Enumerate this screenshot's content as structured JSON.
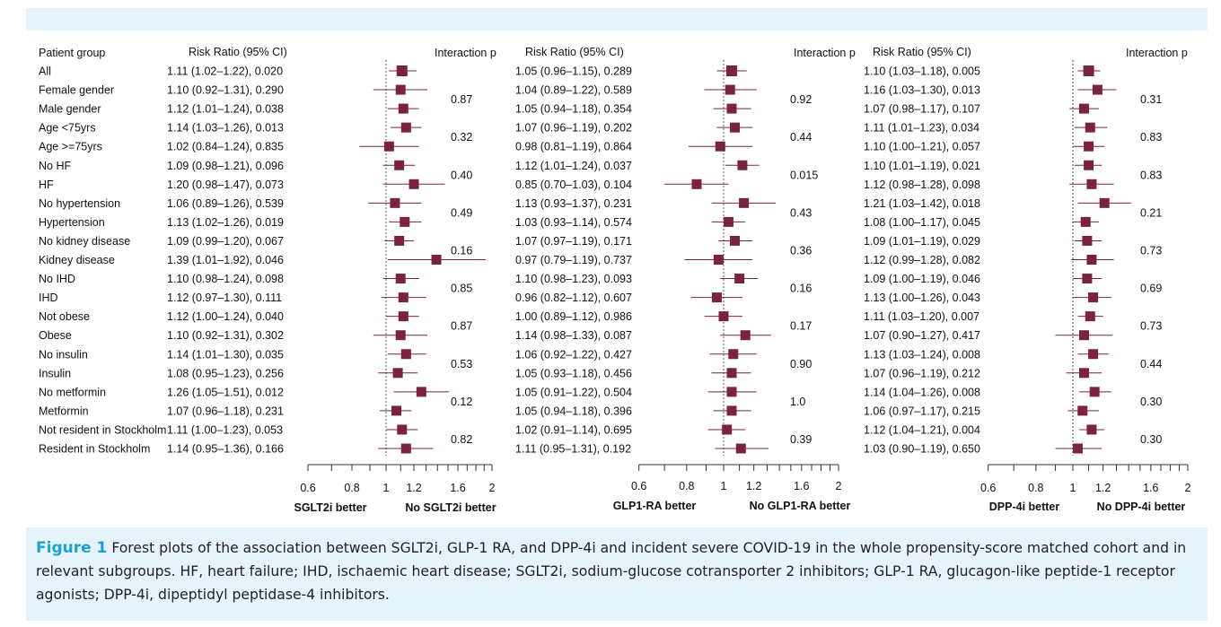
{
  "figure": {
    "label": "Figure 1",
    "caption": "Forest plots of the association between SGLT2i, GLP-1 RA, and DPP-4i and incident severe COVID-19 in the whole propensity-score matched cohort and in relevant subgroups. HF, heart failure; IHD, ischaemic heart disease; SGLT2i, sodium-glucose cotransporter 2 inhibitors; GLP-1 RA, glucagon-like peptide-1 receptor agonists; DPP-4i, dipeptidyl peptidase-4 inhibitors."
  },
  "colors": {
    "marker": "#7b2142",
    "line": "#7b2142",
    "text": "#111111",
    "accent": "#1aa3d9",
    "frame": "#e6f3fa"
  },
  "chart_data": {
    "type": "forest",
    "scale": "log",
    "xlim": [
      0.6,
      2
    ],
    "ticks": [
      "0.6",
      "0.8",
      "1",
      "1.2",
      "1.6",
      "2"
    ],
    "tick_values": [
      0.6,
      0.8,
      1,
      1.2,
      1.6,
      2
    ],
    "reference_line": 1,
    "group_header": "Patient group",
    "groups": [
      "All",
      "Female gender",
      "Male gender",
      "Age <75yrs",
      "Age >=75yrs",
      "No HF",
      "HF",
      "No hypertension",
      "Hypertension",
      "No kidney disease",
      "Kidney disease",
      "No IHD",
      "IHD",
      "Not obese",
      "Obese",
      "No insulin",
      "Insulin",
      "No metformin",
      "Metformin",
      "Not resident in Stockholm",
      "Resident in Stockholm"
    ],
    "panels": [
      {
        "drug": "SGLT2i",
        "rr_header": "Risk Ratio (95% CI)",
        "p_header": "Interaction p",
        "better_left": "SGLT2i better",
        "better_right": "No SGLT2i better",
        "rows": [
          {
            "label": "1.11 (1.02–1.22), 0.020",
            "rr": 1.11,
            "lo": 1.02,
            "hi": 1.22
          },
          {
            "label": "1.10 (0.92–1.31), 0.290",
            "rr": 1.1,
            "lo": 0.92,
            "hi": 1.31
          },
          {
            "label": "1.12 (1.01–1.24), 0.038",
            "rr": 1.12,
            "lo": 1.01,
            "hi": 1.24
          },
          {
            "label": "1.14 (1.03–1.26), 0.013",
            "rr": 1.14,
            "lo": 1.03,
            "hi": 1.26
          },
          {
            "label": "1.02 (0.84–1.24), 0.835",
            "rr": 1.02,
            "lo": 0.84,
            "hi": 1.24
          },
          {
            "label": "1.09 (0.98–1.21), 0.096",
            "rr": 1.09,
            "lo": 0.98,
            "hi": 1.21
          },
          {
            "label": "1.20 (0.98–1.47), 0.073",
            "rr": 1.2,
            "lo": 0.98,
            "hi": 1.47
          },
          {
            "label": "1.06 (0.89–1.26), 0.539",
            "rr": 1.06,
            "lo": 0.89,
            "hi": 1.26
          },
          {
            "label": "1.13 (1.02–1.26), 0.019",
            "rr": 1.13,
            "lo": 1.02,
            "hi": 1.26
          },
          {
            "label": "1.09 (0.99–1.20), 0.067",
            "rr": 1.09,
            "lo": 0.99,
            "hi": 1.2
          },
          {
            "label": "1.39 (1.01–1.92), 0.046",
            "rr": 1.39,
            "lo": 1.01,
            "hi": 1.92
          },
          {
            "label": "1.10 (0.98–1.24), 0.098",
            "rr": 1.1,
            "lo": 0.98,
            "hi": 1.24
          },
          {
            "label": "1.12 (0.97–1.30), 0.111",
            "rr": 1.12,
            "lo": 0.97,
            "hi": 1.3
          },
          {
            "label": "1.12 (1.00–1.24), 0.040",
            "rr": 1.12,
            "lo": 1.0,
            "hi": 1.24
          },
          {
            "label": "1.10 (0.92–1.31), 0.302",
            "rr": 1.1,
            "lo": 0.92,
            "hi": 1.31
          },
          {
            "label": "1.14 (1.01–1.30), 0.035",
            "rr": 1.14,
            "lo": 1.01,
            "hi": 1.3
          },
          {
            "label": "1.08 (0.95–1.23), 0.256",
            "rr": 1.08,
            "lo": 0.95,
            "hi": 1.23
          },
          {
            "label": "1.26 (1.05–1.51), 0.012",
            "rr": 1.26,
            "lo": 1.05,
            "hi": 1.51
          },
          {
            "label": "1.07 (0.96–1.18), 0.231",
            "rr": 1.07,
            "lo": 0.96,
            "hi": 1.18
          },
          {
            "label": "1.11 (1.00–1.23), 0.053",
            "rr": 1.11,
            "lo": 1.0,
            "hi": 1.23
          },
          {
            "label": "1.14 (0.95–1.36), 0.166",
            "rr": 1.14,
            "lo": 0.95,
            "hi": 1.36
          }
        ],
        "interaction_p": [
          "0.87",
          "0.32",
          "0.40",
          "0.49",
          "0.16",
          "0.85",
          "0.87",
          "0.53",
          "0.12",
          "0.82"
        ]
      },
      {
        "drug": "GLP-1 RA",
        "rr_header": "Risk Ratio (95% CI)",
        "p_header": "Interaction p",
        "better_left": "GLP1-RA better",
        "better_right": "No GLP1-RA better",
        "rows": [
          {
            "label": "1.05 (0.96–1.15), 0.289",
            "rr": 1.05,
            "lo": 0.96,
            "hi": 1.15
          },
          {
            "label": "1.04 (0.89–1.22), 0.589",
            "rr": 1.04,
            "lo": 0.89,
            "hi": 1.22
          },
          {
            "label": "1.05 (0.94–1.18), 0.354",
            "rr": 1.05,
            "lo": 0.94,
            "hi": 1.18
          },
          {
            "label": "1.07 (0.96–1.19), 0.202",
            "rr": 1.07,
            "lo": 0.96,
            "hi": 1.19
          },
          {
            "label": "0.98 (0.81–1.19), 0.864",
            "rr": 0.98,
            "lo": 0.81,
            "hi": 1.19
          },
          {
            "label": "1.12 (1.01–1.24), 0.037",
            "rr": 1.12,
            "lo": 1.01,
            "hi": 1.24
          },
          {
            "label": "0.85 (0.70–1.03), 0.104",
            "rr": 0.85,
            "lo": 0.7,
            "hi": 1.03
          },
          {
            "label": "1.13 (0.93–1.37), 0.231",
            "rr": 1.13,
            "lo": 0.93,
            "hi": 1.37
          },
          {
            "label": "1.03 (0.93–1.14), 0.574",
            "rr": 1.03,
            "lo": 0.93,
            "hi": 1.14
          },
          {
            "label": "1.07 (0.97–1.19), 0.171",
            "rr": 1.07,
            "lo": 0.97,
            "hi": 1.19
          },
          {
            "label": "0.97 (0.79–1.19), 0.737",
            "rr": 0.97,
            "lo": 0.79,
            "hi": 1.19
          },
          {
            "label": "1.10 (0.98–1.23), 0.093",
            "rr": 1.1,
            "lo": 0.98,
            "hi": 1.23
          },
          {
            "label": "0.96 (0.82–1.12), 0.607",
            "rr": 0.96,
            "lo": 0.82,
            "hi": 1.12
          },
          {
            "label": "1.00 (0.89–1.12), 0.986",
            "rr": 1.0,
            "lo": 0.89,
            "hi": 1.12
          },
          {
            "label": "1.14 (0.98–1.33), 0.087",
            "rr": 1.14,
            "lo": 0.98,
            "hi": 1.33
          },
          {
            "label": "1.06 (0.92–1.22), 0.427",
            "rr": 1.06,
            "lo": 0.92,
            "hi": 1.22
          },
          {
            "label": "1.05 (0.93–1.18), 0.456",
            "rr": 1.05,
            "lo": 0.93,
            "hi": 1.18
          },
          {
            "label": "1.05 (0.91–1.22), 0.504",
            "rr": 1.05,
            "lo": 0.91,
            "hi": 1.22
          },
          {
            "label": "1.05 (0.94–1.18), 0.396",
            "rr": 1.05,
            "lo": 0.94,
            "hi": 1.18
          },
          {
            "label": "1.02 (0.91–1.14), 0.695",
            "rr": 1.02,
            "lo": 0.91,
            "hi": 1.14
          },
          {
            "label": "1.11 (0.95–1.31), 0.192",
            "rr": 1.11,
            "lo": 0.95,
            "hi": 1.31
          }
        ],
        "interaction_p": [
          "0.92",
          "0.44",
          "0.015",
          "0.43",
          "0.36",
          "0.16",
          "0.17",
          "0.90",
          "1.0",
          "0.39"
        ]
      },
      {
        "drug": "DPP-4i",
        "rr_header": "Risk Ratio (95% CI)",
        "p_header": "Interaction p",
        "better_left": "DPP-4i better",
        "better_right": "No DPP-4i better",
        "rows": [
          {
            "label": "1.10 (1.03–1.18), 0.005",
            "rr": 1.1,
            "lo": 1.03,
            "hi": 1.18
          },
          {
            "label": "1.16 (1.03–1.30), 0.013",
            "rr": 1.16,
            "lo": 1.03,
            "hi": 1.3
          },
          {
            "label": "1.07 (0.98–1.17), 0.107",
            "rr": 1.07,
            "lo": 0.98,
            "hi": 1.17
          },
          {
            "label": "1.11 (1.01–1.23), 0.034",
            "rr": 1.11,
            "lo": 1.01,
            "hi": 1.23
          },
          {
            "label": "1.10 (1.00–1.21), 0.057",
            "rr": 1.1,
            "lo": 1.0,
            "hi": 1.21
          },
          {
            "label": "1.10 (1.01–1.19), 0.021",
            "rr": 1.1,
            "lo": 1.01,
            "hi": 1.19
          },
          {
            "label": "1.12 (0.98–1.28), 0.098",
            "rr": 1.12,
            "lo": 0.98,
            "hi": 1.28
          },
          {
            "label": "1.21 (1.03–1.42), 0.018",
            "rr": 1.21,
            "lo": 1.03,
            "hi": 1.42
          },
          {
            "label": "1.08 (1.00–1.17), 0.045",
            "rr": 1.08,
            "lo": 1.0,
            "hi": 1.17
          },
          {
            "label": "1.09 (1.01–1.19), 0.029",
            "rr": 1.09,
            "lo": 1.01,
            "hi": 1.19
          },
          {
            "label": "1.12 (0.99–1.28), 0.082",
            "rr": 1.12,
            "lo": 0.99,
            "hi": 1.28
          },
          {
            "label": "1.09 (1.00–1.19), 0.046",
            "rr": 1.09,
            "lo": 1.0,
            "hi": 1.19
          },
          {
            "label": "1.13 (1.00–1.26), 0.043",
            "rr": 1.13,
            "lo": 1.0,
            "hi": 1.26
          },
          {
            "label": "1.11 (1.03–1.20), 0.007",
            "rr": 1.11,
            "lo": 1.03,
            "hi": 1.2
          },
          {
            "label": "1.07 (0.90–1.27), 0.417",
            "rr": 1.07,
            "lo": 0.9,
            "hi": 1.27
          },
          {
            "label": "1.13 (1.03–1.24), 0.008",
            "rr": 1.13,
            "lo": 1.03,
            "hi": 1.24
          },
          {
            "label": "1.07 (0.96–1.19), 0.212",
            "rr": 1.07,
            "lo": 0.96,
            "hi": 1.19
          },
          {
            "label": "1.14 (1.04–1.26), 0.008",
            "rr": 1.14,
            "lo": 1.04,
            "hi": 1.26
          },
          {
            "label": "1.06 (0.97–1.17), 0.215",
            "rr": 1.06,
            "lo": 0.97,
            "hi": 1.17
          },
          {
            "label": "1.12 (1.04–1.21), 0.004",
            "rr": 1.12,
            "lo": 1.04,
            "hi": 1.21
          },
          {
            "label": "1.03 (0.90–1.19), 0.650",
            "rr": 1.03,
            "lo": 0.9,
            "hi": 1.19
          }
        ],
        "interaction_p": [
          "0.31",
          "0.83",
          "0.83",
          "0.21",
          "0.73",
          "0.69",
          "0.73",
          "0.44",
          "0.30",
          "0.30"
        ]
      }
    ]
  }
}
